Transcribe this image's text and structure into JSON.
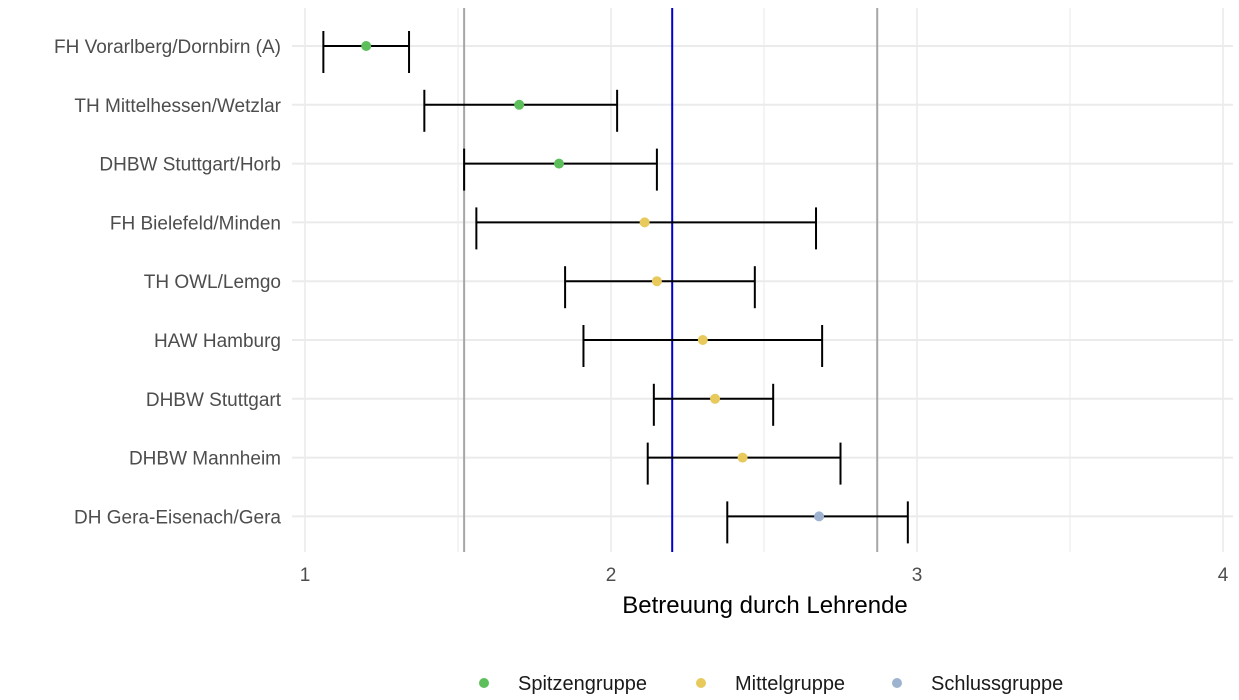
{
  "chart_data": {
    "type": "errorbar",
    "xlabel": "Betreuung durch Lehrende",
    "xlim": [
      1,
      4
    ],
    "x_ticks": [
      "1",
      "2",
      "3",
      "4"
    ],
    "grid": true,
    "legend_position": "bottom",
    "reference_lines": [
      {
        "value": 1.52,
        "color": "#a6a6a6"
      },
      {
        "value": 2.2,
        "color": "#0000cc"
      },
      {
        "value": 2.87,
        "color": "#a6a6a6"
      }
    ],
    "groups": [
      {
        "name": "Spitzengruppe",
        "color": "#5cbf5c"
      },
      {
        "name": "Mittelgruppe",
        "color": "#e8c95c"
      },
      {
        "name": "Schlussgruppe",
        "color": "#9eb3cf"
      }
    ],
    "items": [
      {
        "label": "FH Vorarlberg/Dornbirn (A)",
        "value": 1.2,
        "lower": 1.06,
        "upper": 1.34,
        "group": "Spitzengruppe"
      },
      {
        "label": "TH Mittelhessen/Wetzlar",
        "value": 1.7,
        "lower": 1.39,
        "upper": 2.02,
        "group": "Spitzengruppe"
      },
      {
        "label": "DHBW Stuttgart/Horb",
        "value": 1.83,
        "lower": 1.52,
        "upper": 2.15,
        "group": "Spitzengruppe"
      },
      {
        "label": "FH Bielefeld/Minden",
        "value": 2.11,
        "lower": 1.56,
        "upper": 2.67,
        "group": "Mittelgruppe"
      },
      {
        "label": "TH OWL/Lemgo",
        "value": 2.15,
        "lower": 1.85,
        "upper": 2.47,
        "group": "Mittelgruppe"
      },
      {
        "label": "HAW Hamburg",
        "value": 2.3,
        "lower": 1.91,
        "upper": 2.69,
        "group": "Mittelgruppe"
      },
      {
        "label": "DHBW Stuttgart",
        "value": 2.34,
        "lower": 2.14,
        "upper": 2.53,
        "group": "Mittelgruppe"
      },
      {
        "label": "DHBW Mannheim",
        "value": 2.43,
        "lower": 2.12,
        "upper": 2.75,
        "group": "Mittelgruppe"
      },
      {
        "label": "DH Gera-Eisenach/Gera",
        "value": 2.68,
        "lower": 2.38,
        "upper": 2.97,
        "group": "Schlussgruppe"
      }
    ]
  }
}
